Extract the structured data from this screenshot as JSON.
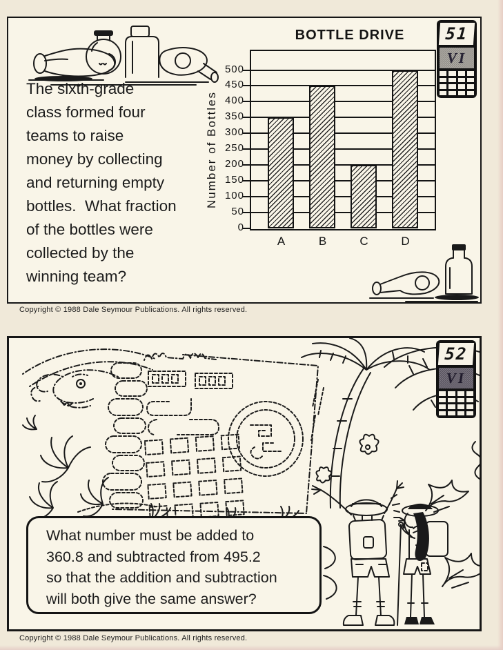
{
  "page": {
    "background": "#f0e9d9",
    "scan_edge_color": "#e8cdc5",
    "ink_color": "#1a1a1a",
    "card_background": "#f9f5e8",
    "badge_background": "#121212"
  },
  "card1": {
    "number": "51",
    "level": "VI",
    "question_lines": [
      "The sixth-grade",
      "class formed four",
      "teams to raise",
      "money by collecting",
      "and returning empty",
      "bottles.  What fraction",
      "of the bottles were",
      "collected by the",
      "winning team?"
    ],
    "copyright": "Copyright © 1988 Dale Seymour Publications. All rights reserved."
  },
  "chart_data": {
    "type": "bar",
    "title": "BOTTLE DRIVE",
    "ylabel": "Number of Bottles",
    "xlabel": "",
    "categories": [
      "A",
      "B",
      "C",
      "D"
    ],
    "values": [
      350,
      450,
      200,
      500
    ],
    "ylim": [
      0,
      500
    ],
    "yticks": [
      0,
      50,
      100,
      150,
      200,
      250,
      300,
      350,
      400,
      450,
      500
    ],
    "grid": true,
    "bar_style": "diagonal-hatch",
    "legend_position": "none"
  },
  "card2": {
    "number": "52",
    "level": "VI",
    "speech_lines": [
      "What number must be added to",
      "360.8 and subtracted from 495.2",
      "so that the addition and subtraction",
      "will both give the same answer?"
    ],
    "copyright": "Copyright © 1988 Dale Seymour Publications. All rights reserved."
  }
}
